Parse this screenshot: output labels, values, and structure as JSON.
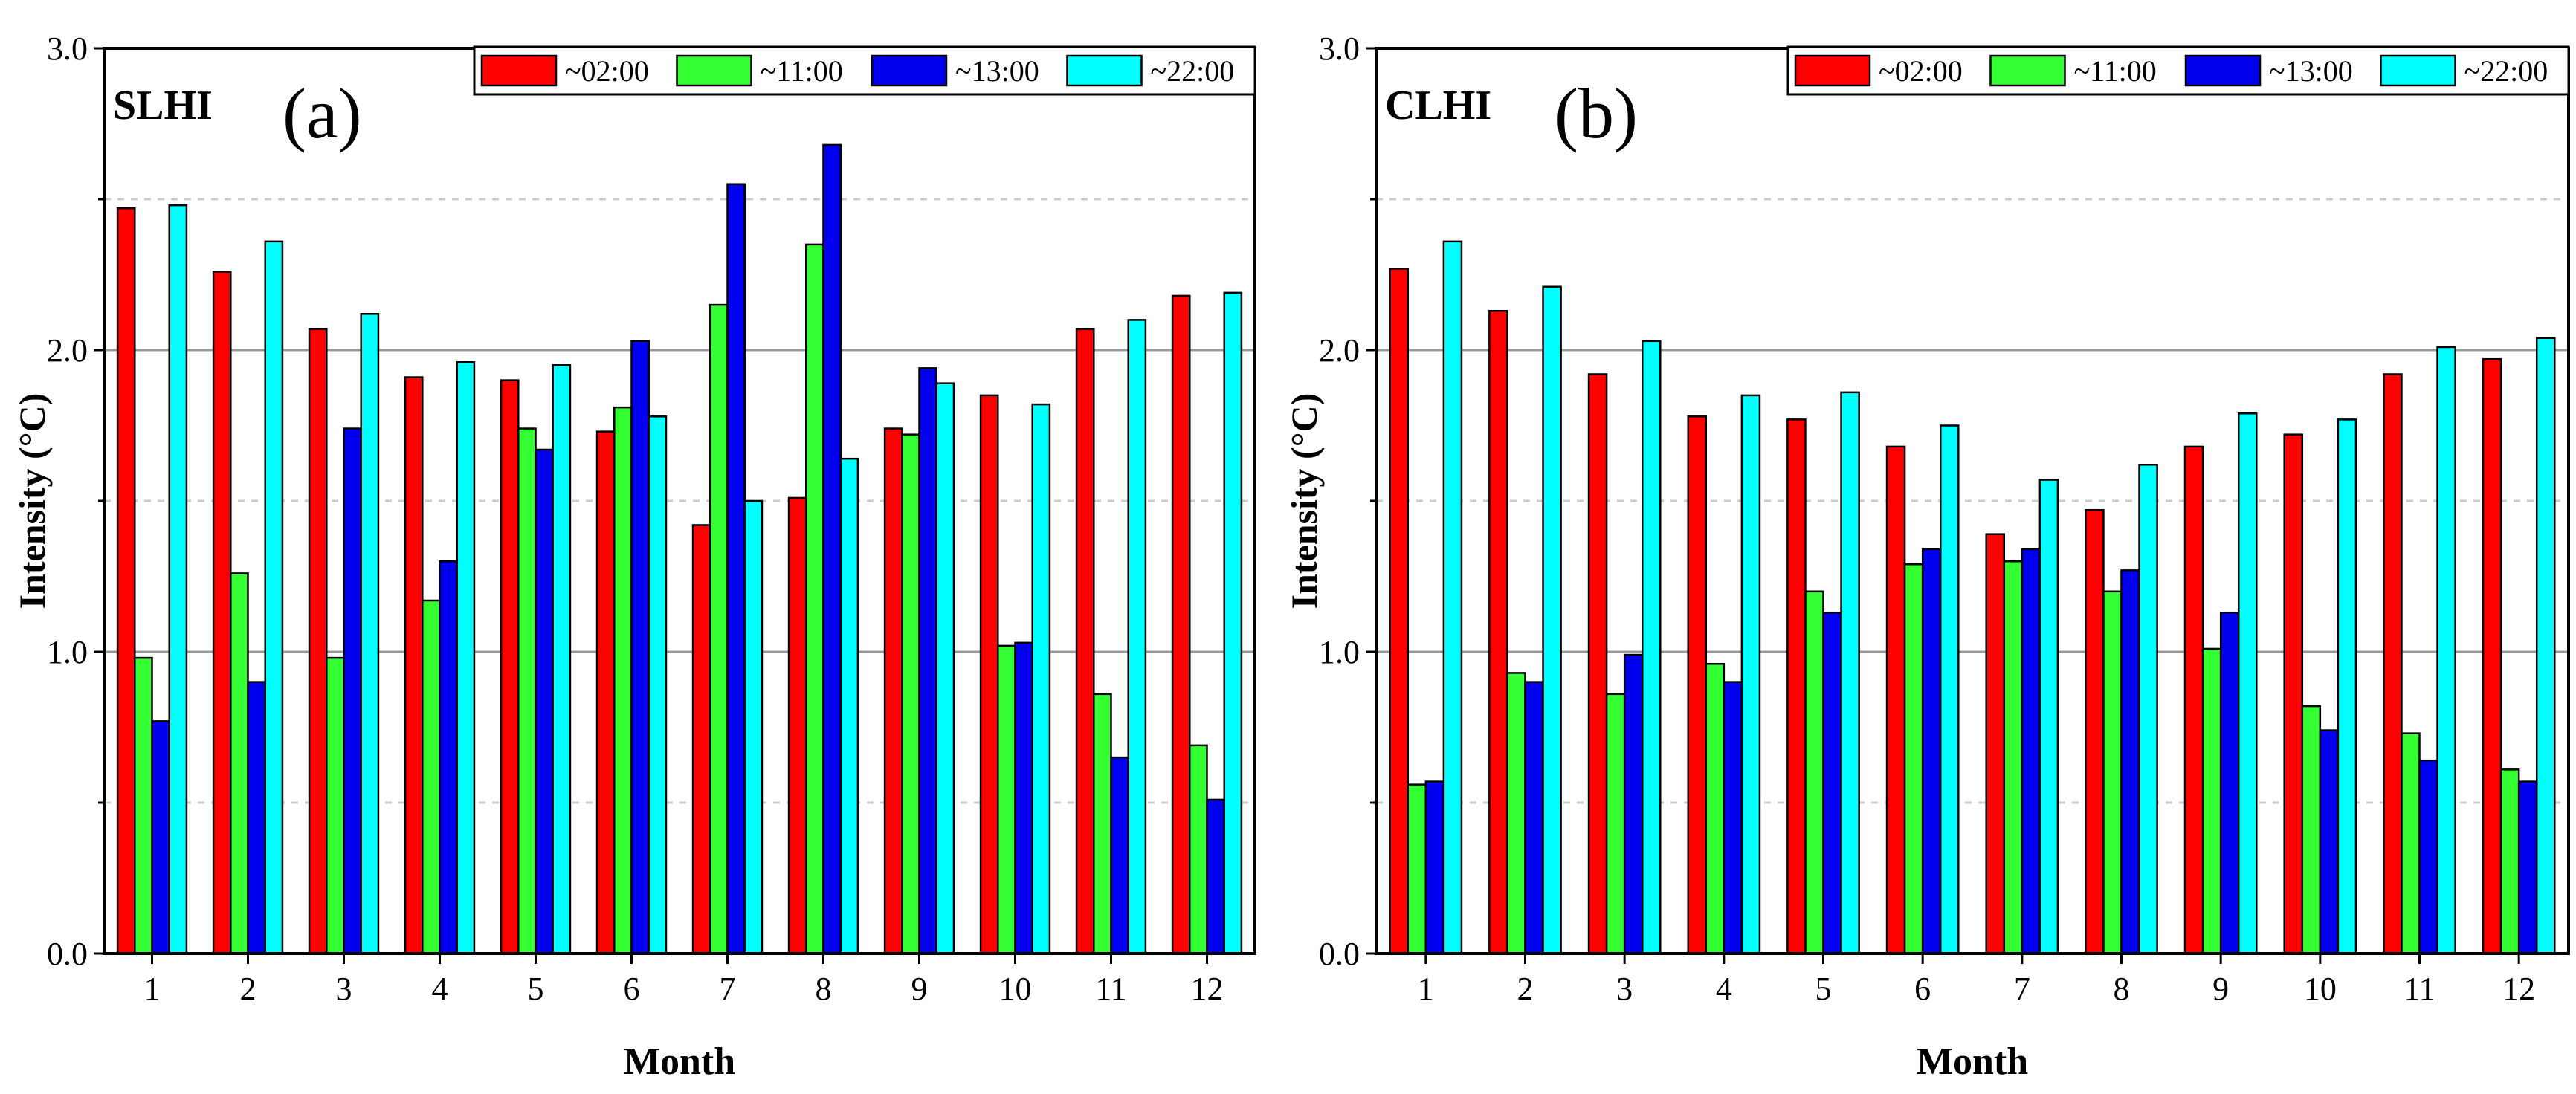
{
  "colors": {
    "~02:00": "#ff0000",
    "~11:00": "#33ff33",
    "~13:00": "#0000ee",
    "~22:00": "#00ffff",
    "axis": "#000000",
    "grid_major": "#999999",
    "grid_minor": "#cccccc"
  },
  "chart_data": [
    {
      "type": "bar",
      "panel_label": "SLHI",
      "title": "(a)",
      "xlabel": "Month",
      "ylabel": "Intensity (°C)",
      "ylim": [
        0,
        3.0
      ],
      "yticks": [
        "0.0",
        "1.0",
        "2.0",
        "3.0"
      ],
      "grid": {
        "major": [
          2.0,
          1.0
        ],
        "minor": [
          2.5,
          1.5,
          0.5
        ]
      },
      "legend_position": "top-right",
      "categories": [
        "1",
        "2",
        "3",
        "4",
        "5",
        "6",
        "7",
        "8",
        "9",
        "10",
        "11",
        "12"
      ],
      "series": [
        {
          "name": "~02:00",
          "values": [
            2.47,
            2.26,
            2.07,
            1.91,
            1.9,
            1.73,
            1.42,
            1.51,
            1.74,
            1.85,
            2.07,
            2.18
          ]
        },
        {
          "name": "~11:00",
          "values": [
            0.98,
            1.26,
            0.98,
            1.17,
            1.74,
            1.81,
            2.15,
            2.35,
            1.72,
            1.02,
            0.86,
            0.69
          ]
        },
        {
          "name": "~13:00",
          "values": [
            0.77,
            0.9,
            1.74,
            1.3,
            1.67,
            2.03,
            2.55,
            2.68,
            1.94,
            1.03,
            0.65,
            0.51
          ]
        },
        {
          "name": "~22:00",
          "values": [
            2.48,
            2.36,
            2.12,
            1.96,
            1.95,
            1.78,
            1.5,
            1.64,
            1.89,
            1.82,
            2.1,
            2.19
          ]
        }
      ]
    },
    {
      "type": "bar",
      "panel_label": "CLHI",
      "title": "(b)",
      "xlabel": "Month",
      "ylabel": "Intensity (°C)",
      "ylim": [
        0,
        3.0
      ],
      "yticks": [
        "0.0",
        "1.0",
        "2.0",
        "3.0"
      ],
      "grid": {
        "major": [
          2.0,
          1.0
        ],
        "minor": [
          2.5,
          1.5,
          0.5
        ]
      },
      "legend_position": "top-right",
      "categories": [
        "1",
        "2",
        "3",
        "4",
        "5",
        "6",
        "7",
        "8",
        "9",
        "10",
        "11",
        "12"
      ],
      "series": [
        {
          "name": "~02:00",
          "values": [
            2.27,
            2.13,
            1.92,
            1.78,
            1.77,
            1.68,
            1.39,
            1.47,
            1.68,
            1.72,
            1.92,
            1.97
          ]
        },
        {
          "name": "~11:00",
          "values": [
            0.56,
            0.93,
            0.86,
            0.96,
            1.2,
            1.29,
            1.3,
            1.2,
            1.01,
            0.82,
            0.73,
            0.61
          ]
        },
        {
          "name": "~13:00",
          "values": [
            0.57,
            0.9,
            0.99,
            0.9,
            1.13,
            1.34,
            1.34,
            1.27,
            1.13,
            0.74,
            0.64,
            0.57
          ]
        },
        {
          "name": "~22:00",
          "values": [
            2.36,
            2.21,
            2.03,
            1.85,
            1.86,
            1.75,
            1.57,
            1.62,
            1.79,
            1.77,
            2.01,
            2.04
          ]
        }
      ]
    }
  ]
}
